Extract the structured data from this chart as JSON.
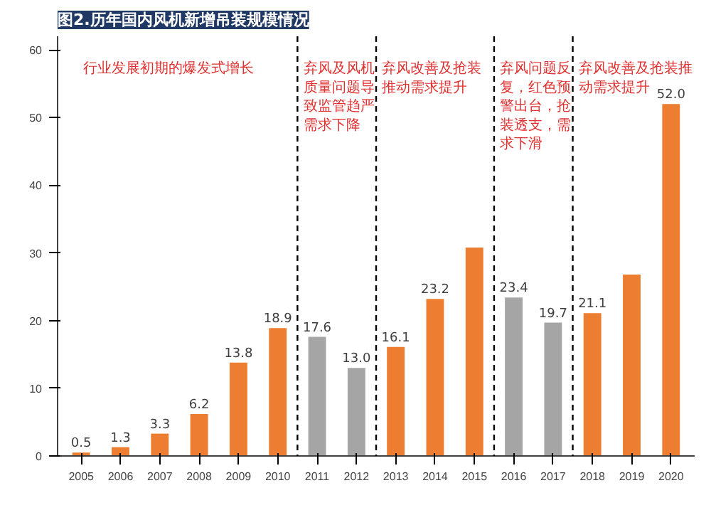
{
  "chart_data": {
    "type": "bar",
    "title": "图2.历年国内风机新增吊装规模情况",
    "x": [
      2005,
      2006,
      2007,
      2008,
      2009,
      2010,
      2011,
      2012,
      2013,
      2014,
      2015,
      2016,
      2017,
      2018,
      2019,
      2020
    ],
    "values": [
      0.5,
      1.3,
      3.3,
      6.2,
      13.8,
      18.9,
      17.6,
      13.0,
      16.1,
      23.2,
      30.8,
      23.4,
      19.7,
      21.1,
      26.8,
      52.0
    ],
    "colors": [
      "#ed7d31",
      "#ed7d31",
      "#ed7d31",
      "#ed7d31",
      "#ed7d31",
      "#ed7d31",
      "#a5a5a5",
      "#a5a5a5",
      "#ed7d31",
      "#ed7d31",
      "#ed7d31",
      "#a5a5a5",
      "#a5a5a5",
      "#ed7d31",
      "#ed7d31",
      "#ed7d31"
    ],
    "value_labels": [
      "0.5",
      "1.3",
      "3.3",
      "6.2",
      "13.8",
      "18.9",
      "17.6",
      "13.0",
      "16.1",
      "23.2",
      null,
      "23.4",
      "19.7",
      "21.1",
      null,
      "52.0"
    ],
    "xlim": [
      2004.4,
      2020.6
    ],
    "xticks": [
      2005,
      2006,
      2007,
      2008,
      2009,
      2010,
      2011,
      2012,
      2013,
      2014,
      2015,
      2016,
      2017,
      2018,
      2019,
      2020
    ],
    "ylim": [
      0,
      62
    ],
    "yticks": [
      0,
      10,
      20,
      30,
      40,
      50,
      60
    ],
    "grid": false,
    "ref_lines": [
      {
        "axis": "x",
        "value": 2010.5,
        "color": "#000000",
        "line_style": "dashed"
      },
      {
        "axis": "x",
        "value": 2012.5,
        "color": "#000000",
        "line_style": "dashed"
      },
      {
        "axis": "x",
        "value": 2015.5,
        "color": "#000000",
        "line_style": "dashed"
      },
      {
        "axis": "x",
        "value": 2017.5,
        "color": "#000000",
        "line_style": "dashed"
      }
    ],
    "annotations": [
      "行业发展初期的爆发式增长",
      "弃风及风机质量问题导致监管趋严需求下降",
      "弃风改善及抢装推动需求提升",
      "弃风问题反复，红色预警出台，抢装透支，需求下滑",
      "弃风改善及抢装推动需求提升"
    ]
  }
}
